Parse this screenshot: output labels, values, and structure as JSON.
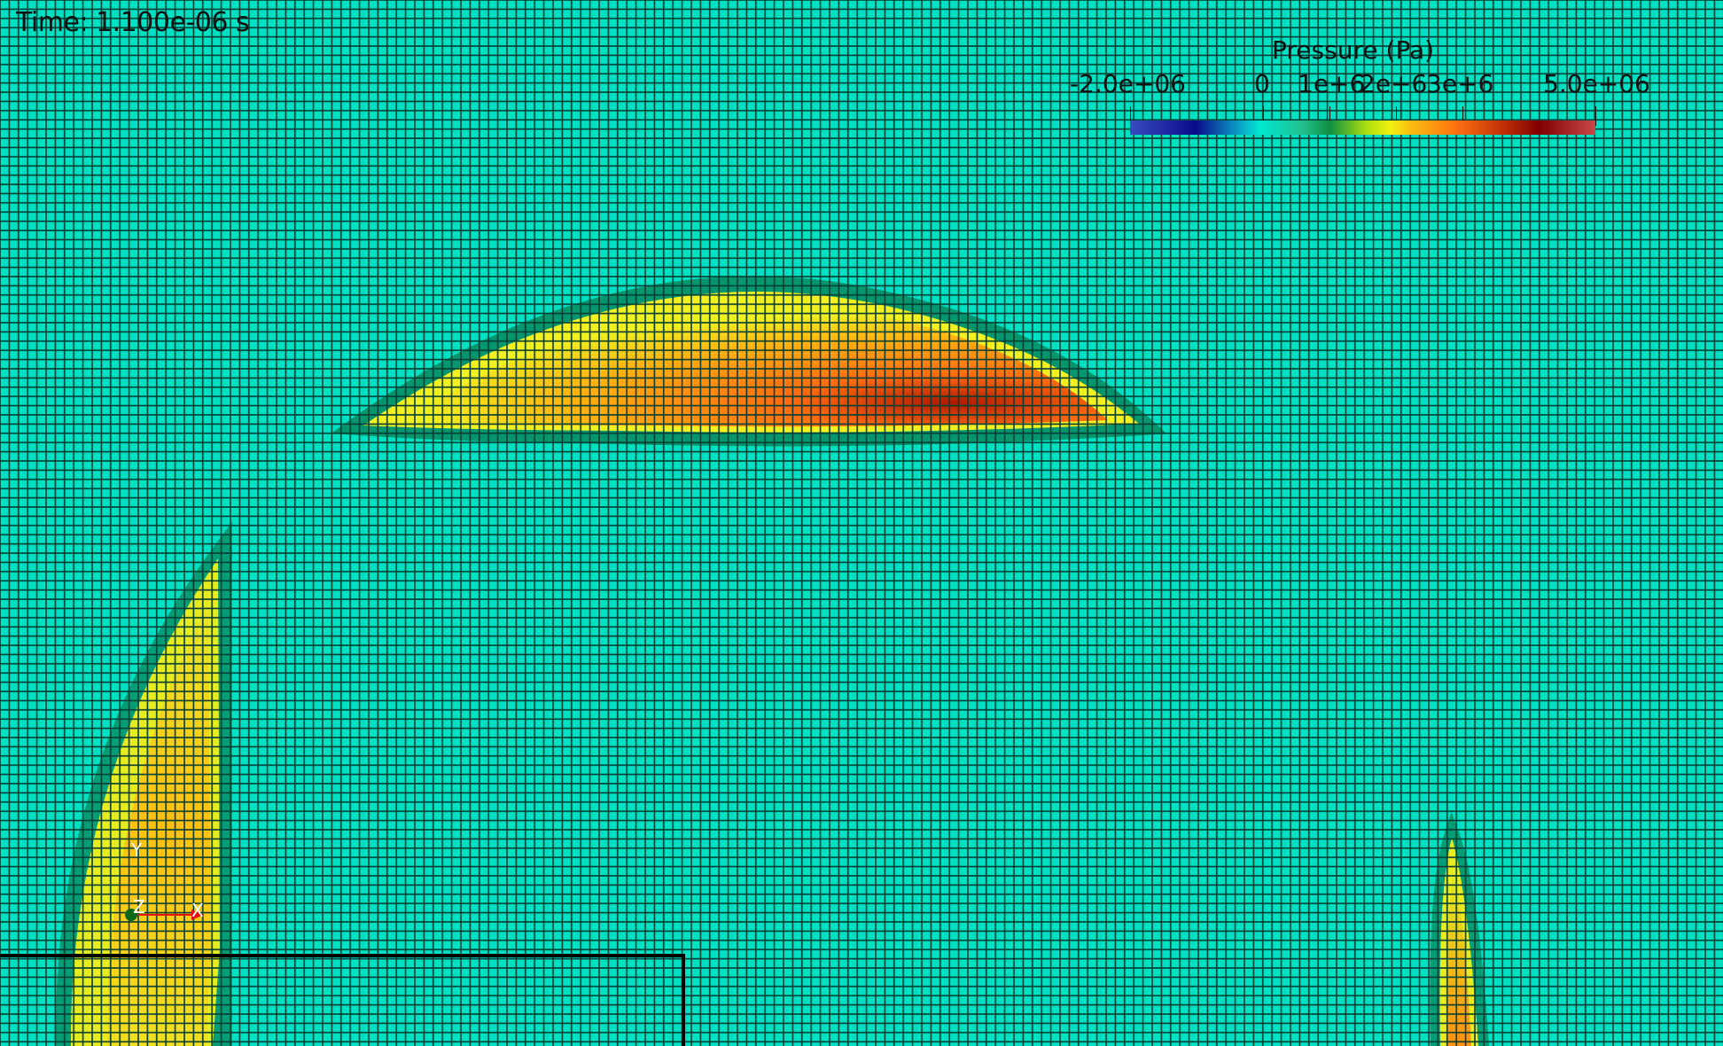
{
  "time_label": "Time: 1.100e-06 s",
  "colorbar": {
    "title": "Pressure (Pa)",
    "ticks": [
      "-2.0e+06",
      "0",
      "1e+6",
      "2e+6",
      "3e+6",
      "5.0e+06"
    ],
    "range": [
      -2000000,
      5000000
    ]
  },
  "axes_triad": {
    "x": "X",
    "y": "Y",
    "z": "Z"
  },
  "colors": {
    "background_field": "#00e1c3",
    "mesh_lines": "#053c32",
    "high_pressure": "#c03008",
    "mid_pressure": "#ffd000"
  }
}
